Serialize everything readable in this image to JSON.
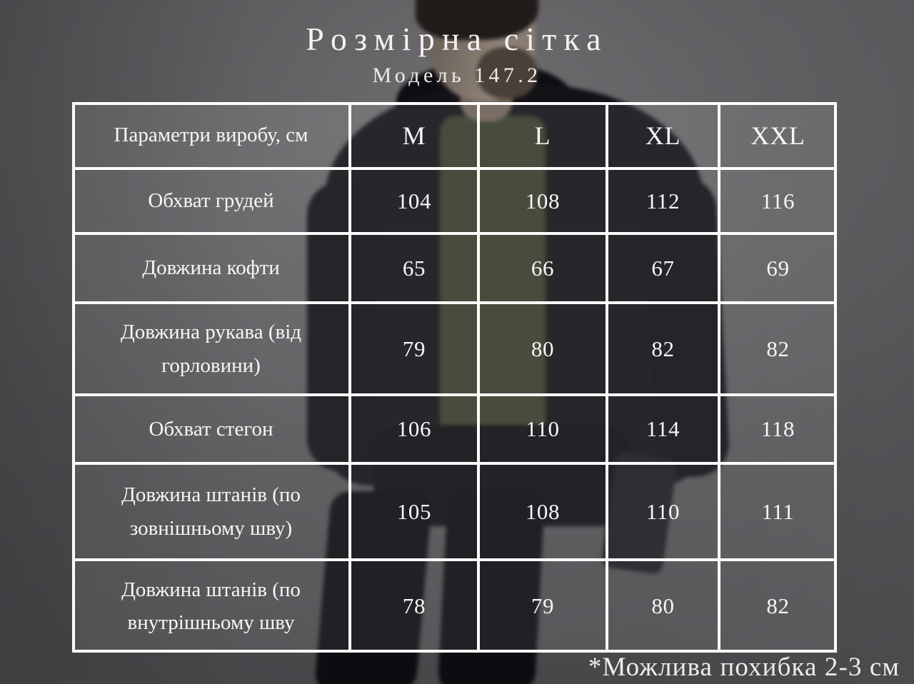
{
  "title": "Розмірна сітка",
  "subtitle": "Модель 147.2",
  "footnote": "*Можлива похибка 2-3 см",
  "size_table": {
    "header_label": "Параметри виробу, см",
    "sizes": [
      "M",
      "L",
      "XL",
      "XXL"
    ],
    "rows": [
      {
        "label": "Обхват грудей",
        "values": [
          "104",
          "108",
          "112",
          "116"
        ]
      },
      {
        "label": "Довжина кофти",
        "values": [
          "65",
          "66",
          "67",
          "69"
        ]
      },
      {
        "label": "Довжина рукава (від горловини)",
        "values": [
          "79",
          "80",
          "82",
          "82"
        ]
      },
      {
        "label": "Обхват стегон",
        "values": [
          "106",
          "110",
          "114",
          "118"
        ]
      },
      {
        "label": "Довжина штанів (по зовнішньому шву)",
        "values": [
          "105",
          "108",
          "110",
          "111"
        ]
      },
      {
        "label": "Довжина штанів (по внутрішньому шву",
        "values": [
          "78",
          "79",
          "80",
          "82"
        ]
      }
    ]
  },
  "colors": {
    "table_border": "#ffffff",
    "table_text": "#f7f6f7",
    "cell_fill": "rgba(255,255,255,0.085)",
    "wall": "#4f4e51"
  }
}
